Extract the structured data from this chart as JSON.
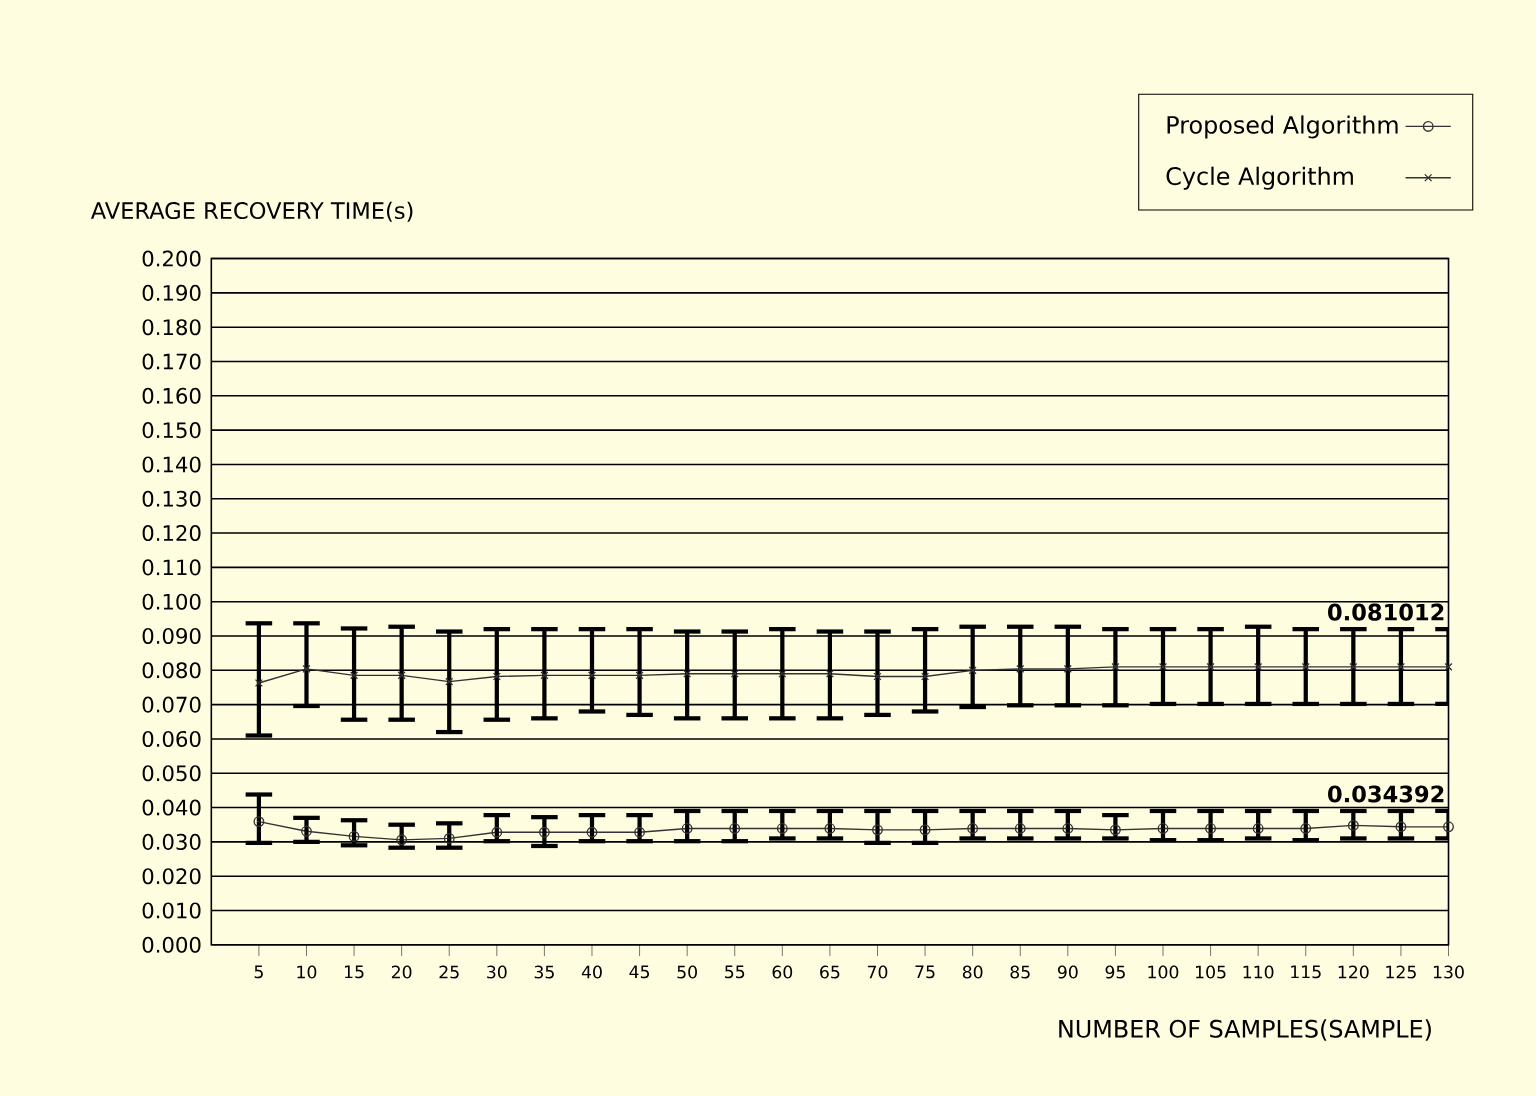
{
  "chart_data": {
    "type": "line",
    "ylabel": "AVERAGE RECOVERY TIME(s)",
    "xlabel": "NUMBER OF SAMPLES(SAMPLE)",
    "x": [
      5,
      10,
      15,
      20,
      25,
      30,
      35,
      40,
      45,
      50,
      55,
      60,
      65,
      70,
      75,
      80,
      85,
      90,
      95,
      100,
      105,
      110,
      115,
      120,
      125,
      130
    ],
    "xlim": [
      0,
      130
    ],
    "xticks": [
      5,
      10,
      15,
      20,
      25,
      30,
      35,
      40,
      45,
      50,
      55,
      60,
      65,
      70,
      75,
      80,
      85,
      90,
      95,
      100,
      105,
      110,
      115,
      120,
      125,
      130
    ],
    "ylim": [
      0,
      0.2
    ],
    "yticks": [
      {
        "value": 0,
        "label": "0.000"
      },
      {
        "value": 0.01,
        "label": "0.010"
      },
      {
        "value": 0.02,
        "label": "0.020"
      },
      {
        "value": 0.03,
        "label": "0.030"
      },
      {
        "value": 0.04,
        "label": "0.040"
      },
      {
        "value": 0.05,
        "label": "0.050"
      },
      {
        "value": 0.06,
        "label": "0.060"
      },
      {
        "value": 0.07,
        "label": "0.070"
      },
      {
        "value": 0.08,
        "label": "0.080"
      },
      {
        "value": 0.09,
        "label": "0.090"
      },
      {
        "value": 0.1,
        "label": "0.100"
      },
      {
        "value": 0.11,
        "label": "0.110"
      },
      {
        "value": 0.12,
        "label": "0.120"
      },
      {
        "value": 0.13,
        "label": "0.130"
      },
      {
        "value": 0.14,
        "label": "0.140"
      },
      {
        "value": 0.15,
        "label": "0.150"
      },
      {
        "value": 0.16,
        "label": "0.160"
      },
      {
        "value": 0.17,
        "label": "0.170"
      },
      {
        "value": 0.18,
        "label": "0.180"
      },
      {
        "value": 0.19,
        "label": "0.190"
      },
      {
        "value": 0.2,
        "label": "0.200"
      }
    ],
    "grid": "y",
    "legend": "top right",
    "series": [
      {
        "name": "Proposed Algorithm",
        "color": "#333333",
        "marker": "circle",
        "values": [
          0.0359,
          0.0331,
          0.0316,
          0.0306,
          0.031,
          0.0328,
          0.0328,
          0.0328,
          0.0328,
          0.0339,
          0.0339,
          0.0339,
          0.0339,
          0.0335,
          0.0335,
          0.0339,
          0.0339,
          0.0339,
          0.0335,
          0.0339,
          0.0339,
          0.0339,
          0.0339,
          0.0348,
          0.0344,
          0.034392
        ],
        "errors": [
          [
            0.0297,
            0.0438
          ],
          [
            0.03,
            0.037
          ],
          [
            0.029,
            0.0363
          ],
          [
            0.0283,
            0.035
          ],
          [
            0.0283,
            0.0354
          ],
          [
            0.0302,
            0.0378
          ],
          [
            0.0288,
            0.0372
          ],
          [
            0.0302,
            0.0378
          ],
          [
            0.0302,
            0.0378
          ],
          [
            0.0302,
            0.039
          ],
          [
            0.0302,
            0.039
          ],
          [
            0.031,
            0.039
          ],
          [
            0.031,
            0.039
          ],
          [
            0.0297,
            0.039
          ],
          [
            0.0297,
            0.039
          ],
          [
            0.031,
            0.039
          ],
          [
            0.031,
            0.039
          ],
          [
            0.031,
            0.039
          ],
          [
            0.031,
            0.0378
          ],
          [
            0.0305,
            0.039
          ],
          [
            0.0305,
            0.039
          ],
          [
            0.031,
            0.039
          ],
          [
            0.0305,
            0.039
          ],
          [
            0.031,
            0.039
          ],
          [
            0.031,
            0.039
          ],
          [
            0.031,
            0.039
          ]
        ],
        "value_labels": [
          null,
          null,
          null,
          null,
          null,
          null,
          null,
          null,
          null,
          null,
          null,
          null,
          null,
          null,
          null,
          null,
          null,
          null,
          null,
          null,
          null,
          null,
          null,
          null,
          null,
          "0.034392"
        ]
      },
      {
        "name": "Cycle Algorithm",
        "color": "#333333",
        "marker": "cross",
        "values": [
          0.0763,
          0.0804,
          0.0785,
          0.0785,
          0.0767,
          0.0782,
          0.0785,
          0.0785,
          0.0785,
          0.079,
          0.079,
          0.079,
          0.079,
          0.0782,
          0.0782,
          0.08,
          0.0804,
          0.0804,
          0.081,
          0.081,
          0.081,
          0.081,
          0.081,
          0.081,
          0.081,
          0.081012
        ],
        "errors": [
          [
            0.061,
            0.0937
          ],
          [
            0.0696,
            0.0937
          ],
          [
            0.0656,
            0.0922
          ],
          [
            0.0656,
            0.0927
          ],
          [
            0.062,
            0.0913
          ],
          [
            0.0656,
            0.092
          ],
          [
            0.066,
            0.092
          ],
          [
            0.068,
            0.092
          ],
          [
            0.067,
            0.092
          ],
          [
            0.066,
            0.0913
          ],
          [
            0.066,
            0.0913
          ],
          [
            0.066,
            0.092
          ],
          [
            0.066,
            0.0913
          ],
          [
            0.067,
            0.0913
          ],
          [
            0.068,
            0.092
          ],
          [
            0.0693,
            0.0927
          ],
          [
            0.0698,
            0.0927
          ],
          [
            0.0698,
            0.0927
          ],
          [
            0.0698,
            0.092
          ],
          [
            0.0702,
            0.092
          ],
          [
            0.0702,
            0.092
          ],
          [
            0.0702,
            0.0927
          ],
          [
            0.0702,
            0.092
          ],
          [
            0.0702,
            0.092
          ],
          [
            0.0702,
            0.092
          ],
          [
            0.0702,
            0.092
          ]
        ],
        "value_labels": [
          null,
          null,
          null,
          null,
          null,
          null,
          null,
          null,
          null,
          null,
          null,
          null,
          null,
          null,
          null,
          null,
          null,
          null,
          null,
          null,
          null,
          null,
          null,
          null,
          null,
          "0.081012"
        ]
      }
    ]
  }
}
